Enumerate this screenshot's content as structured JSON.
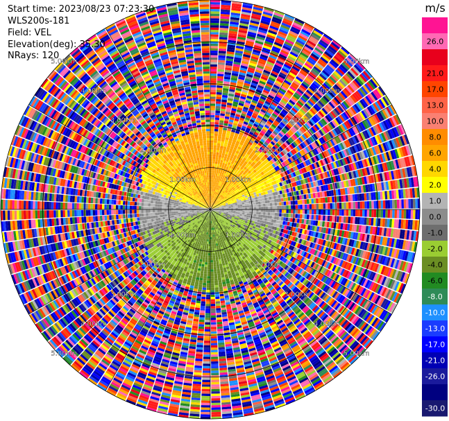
{
  "info": {
    "start_time": "Start time: 2023/08/23 07:23:30",
    "instrument": "WLS200s-181",
    "field": "Field: VEL",
    "elevation": "Elevation(deg): 35.30",
    "nrays": "NRays: 120"
  },
  "chart_data": {
    "type": "heatmap",
    "projection": "polar-ppi",
    "field": "VEL",
    "units": "m/s",
    "nrays": 120,
    "elevation_deg": 35.3,
    "max_range_km": 5.0,
    "range_rings_km": [
      1.0,
      2.0,
      3.0,
      4.0,
      5.0
    ],
    "ring_labels": [
      "1.00km",
      "2.00km",
      "3.00km",
      "4.00km",
      "5.00km"
    ],
    "valid_data_range_km": 1.9,
    "pattern": "north half positive (+2 to +6 m/s, yellow-orange), south half negative (-2 to -6 m/s, green), near-zero (grey) along east-west axis, noise beyond ~1.9 km",
    "colorbar": {
      "label": "m/s",
      "ticks": [
        "26.0",
        "21.0",
        "17.0",
        "13.0",
        "10.0",
        "8.0",
        "6.0",
        "4.0",
        "2.0",
        "1.0",
        "0.0",
        "-1.0",
        "-2.0",
        "-4.0",
        "-6.0",
        "-8.0",
        "-10.0",
        "-13.0",
        "-17.0",
        "-21.0",
        "-26.0",
        "-30.0"
      ],
      "colors": [
        "#ff1493",
        "#ff69b4",
        "#e8001c",
        "#ff1a1a",
        "#ff4500",
        "#ff6347",
        "#fa8072",
        "#ff8c00",
        "#ffa500",
        "#ffd700",
        "#ffff00",
        "#b4b4b4",
        "#8c8c8c",
        "#6e6e6e",
        "#9acd32",
        "#6b8e23",
        "#228b22",
        "#2e8b57",
        "#1e90ff",
        "#1a3cff",
        "#0000ff",
        "#0000b4",
        "#1a1a9c",
        "#000080",
        "#191970"
      ]
    }
  }
}
